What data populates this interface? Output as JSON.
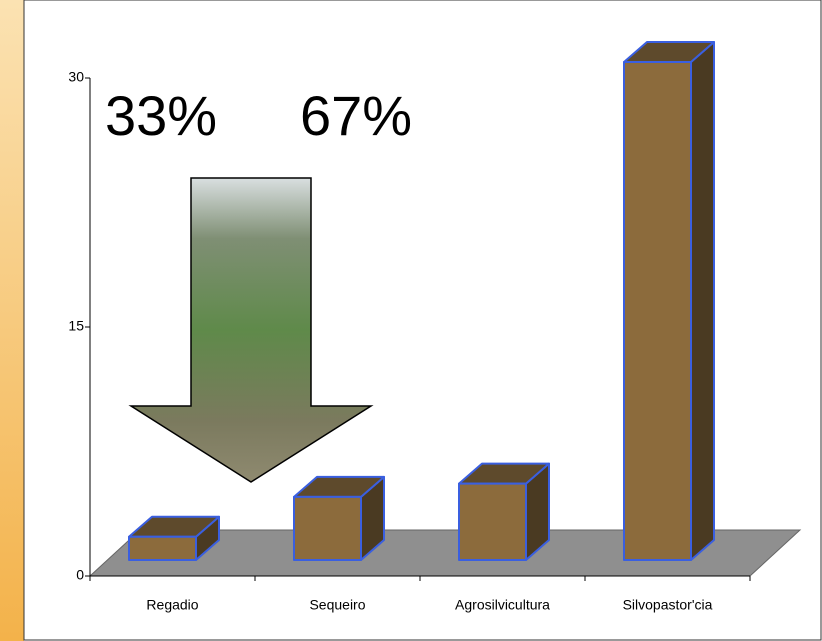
{
  "chart_data": {
    "type": "bar3d",
    "annotations": [
      "33%",
      "67%"
    ],
    "categories": [
      "Regadio",
      "Sequeiro",
      "Agrosilvicultura",
      "Silvopastor'cia"
    ],
    "values": [
      1.4,
      3.8,
      4.6,
      30
    ],
    "color": "#8c6b3c",
    "ylim": [
      0,
      30
    ],
    "yticks": [
      0,
      15,
      30
    ]
  }
}
